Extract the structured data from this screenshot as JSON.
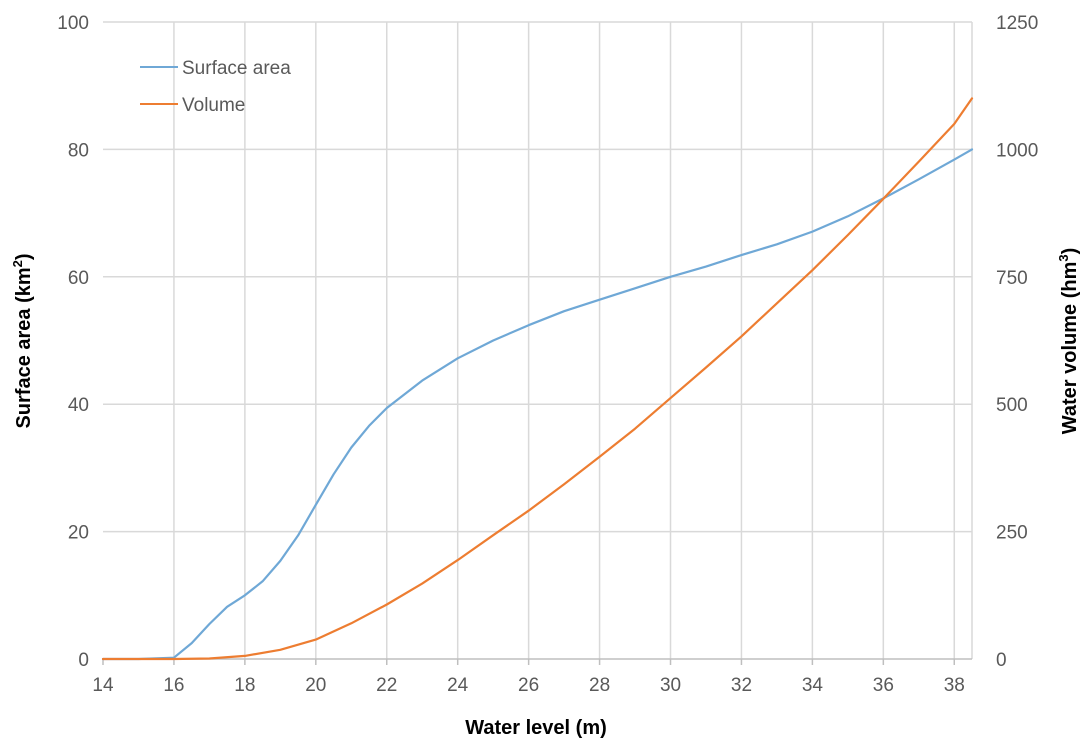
{
  "chart_data": {
    "type": "line",
    "xlabel": "Water level (m)",
    "ylabel_left": "Surface area (km²)",
    "ylabel_left_parts": [
      "Surface area (km",
      "2",
      ")"
    ],
    "ylabel_right": "Water volume (hm³)",
    "ylabel_right_parts": [
      "Water volume (hm",
      "3",
      ")"
    ],
    "xlim": [
      14,
      38.5
    ],
    "ylim_left": [
      0,
      100
    ],
    "ylim_right": [
      0,
      1250
    ],
    "x_ticks": [
      "14",
      "16",
      "18",
      "20",
      "22",
      "24",
      "26",
      "28",
      "30",
      "32",
      "34",
      "36",
      "38"
    ],
    "y_left_ticks": [
      "0",
      "20",
      "40",
      "60",
      "80",
      "100"
    ],
    "y_right_ticks": [
      "0",
      "250",
      "500",
      "750",
      "1000",
      "1250"
    ],
    "grid": true,
    "legend_position": "top-left",
    "series": [
      {
        "name": "Surface area",
        "axis": "left",
        "color": "#6fa8d6",
        "points": [
          [
            14,
            0
          ],
          [
            15,
            0
          ],
          [
            16,
            0.2
          ],
          [
            16.5,
            2.5
          ],
          [
            17,
            5.5
          ],
          [
            17.5,
            8.2
          ],
          [
            18,
            10
          ],
          [
            18.5,
            12.2
          ],
          [
            19,
            15.4
          ],
          [
            19.5,
            19.4
          ],
          [
            20,
            24.2
          ],
          [
            20.5,
            29
          ],
          [
            21,
            33.2
          ],
          [
            21.5,
            36.6
          ],
          [
            22,
            39.4
          ],
          [
            23,
            43.7
          ],
          [
            24,
            47.2
          ],
          [
            25,
            50
          ],
          [
            26,
            52.4
          ],
          [
            27,
            54.6
          ],
          [
            28,
            56.4
          ],
          [
            29,
            58.2
          ],
          [
            30,
            60
          ],
          [
            31,
            61.6
          ],
          [
            32,
            63.4
          ],
          [
            33,
            65.1
          ],
          [
            34,
            67.1
          ],
          [
            35,
            69.5
          ],
          [
            36,
            72.3
          ],
          [
            37,
            75.3
          ],
          [
            38,
            78.4
          ],
          [
            38.5,
            80
          ]
        ]
      },
      {
        "name": "Volume",
        "axis": "right",
        "color": "#ed7d31",
        "points": [
          [
            14,
            0
          ],
          [
            16,
            0
          ],
          [
            17,
            1
          ],
          [
            18,
            6
          ],
          [
            19,
            18
          ],
          [
            20,
            38
          ],
          [
            21,
            70
          ],
          [
            22,
            107
          ],
          [
            23,
            148
          ],
          [
            24,
            194
          ],
          [
            25,
            243
          ],
          [
            26,
            291
          ],
          [
            27,
            343
          ],
          [
            28,
            397
          ],
          [
            29,
            452
          ],
          [
            30,
            512
          ],
          [
            31,
            572
          ],
          [
            32,
            633
          ],
          [
            33,
            698
          ],
          [
            34,
            763
          ],
          [
            35,
            832
          ],
          [
            36,
            903
          ],
          [
            37,
            976
          ],
          [
            38,
            1050
          ],
          [
            38.5,
            1100
          ]
        ]
      }
    ]
  }
}
